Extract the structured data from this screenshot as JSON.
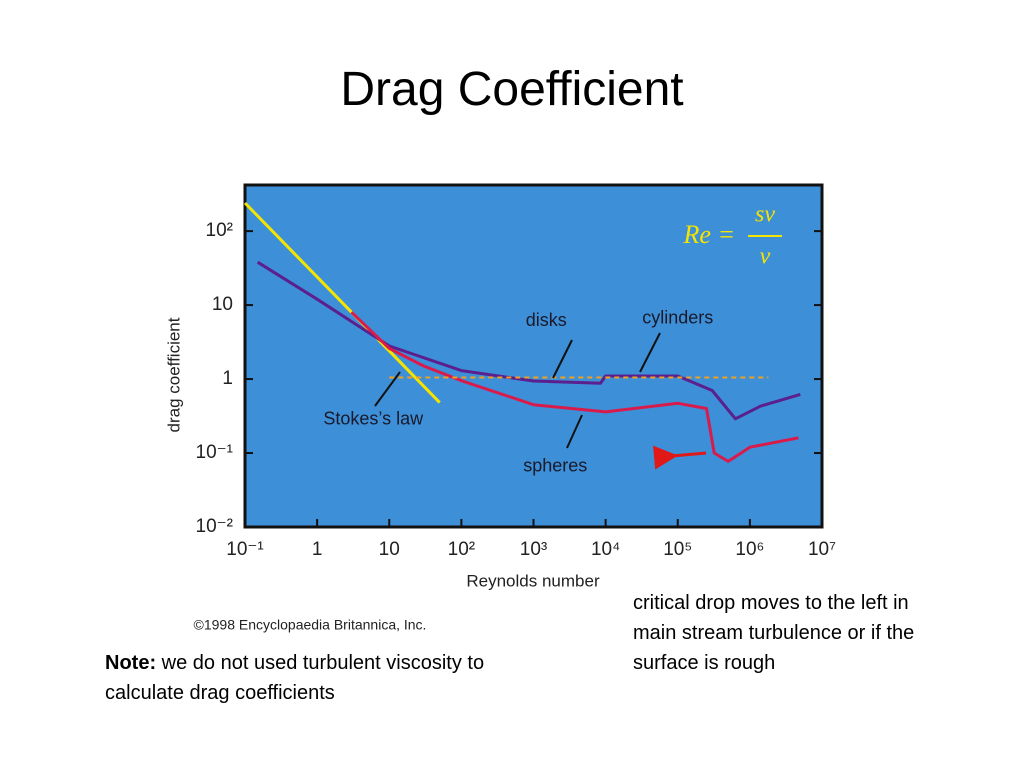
{
  "title": "Drag Coefficient",
  "note": {
    "label": "Note:",
    "text": " we do not used turbulent viscosity to calculate drag coefficients"
  },
  "side_text": "critical drop moves to the left in main stream turbulence or if the surface is rough",
  "chart_data": {
    "type": "line",
    "x_label": "Reynolds number",
    "y_label": "drag coefficient",
    "copyright": "©1998 Encyclopaedia Britannica, Inc.",
    "log_x": true,
    "log_y": true,
    "background": "#3d8fd8",
    "xlim": [
      0.1,
      10000000
    ],
    "ylim": [
      0.01,
      420
    ],
    "xticks": [
      {
        "value": 0.1,
        "label": "10⁻¹"
      },
      1,
      10,
      {
        "value": 100,
        "label": "10²"
      },
      {
        "value": 1000,
        "label": "10³"
      },
      {
        "value": 10000,
        "label": "10⁴"
      },
      {
        "value": 100000,
        "label": "10⁵"
      },
      {
        "value": 1000000,
        "label": "10⁶"
      },
      {
        "value": 10000000,
        "label": "10⁷"
      }
    ],
    "yticks": [
      {
        "value": 0.01,
        "label": "10⁻²"
      },
      {
        "value": 0.1,
        "label": "10⁻¹"
      },
      1,
      10,
      {
        "value": 100,
        "label": "10²"
      }
    ],
    "series": [
      {
        "color": "#f5e400",
        "width": 3,
        "x": [
          0.1,
          50
        ],
        "values": [
          240,
          0.48
        ]
      },
      {
        "color": "#5b1f8e",
        "width": 3,
        "x": [
          0.15,
          1,
          10,
          100,
          1000,
          8500,
          10000,
          100000,
          300000,
          630000,
          1400000,
          5000000
        ],
        "values": [
          38,
          12,
          2.8,
          1.3,
          0.94,
          0.88,
          1.1,
          1.1,
          0.7,
          0.29,
          0.43,
          0.62
        ]
      },
      {
        "color": "#d81b4b",
        "width": 3,
        "x": [
          3,
          10,
          30,
          100,
          1000,
          10000,
          100000,
          250000,
          320000,
          500000,
          1000000,
          4700000
        ],
        "values": [
          8,
          2.6,
          1.5,
          0.95,
          0.45,
          0.36,
          0.47,
          0.4,
          0.1,
          0.077,
          0.12,
          0.16
        ]
      },
      {
        "color": "#f0a020",
        "width": 2,
        "dashed": true,
        "x": [
          10,
          1800000
        ],
        "values": [
          1.05,
          1.05
        ]
      }
    ],
    "annotations": [
      {
        "text": "disks",
        "x": 1500,
        "y": 6
      },
      {
        "text": "cylinders",
        "x": 100000,
        "y": 6.5
      },
      {
        "text": "Stokes’s law",
        "x": 6,
        "y": 0.28
      },
      {
        "text": "spheres",
        "x": 2000,
        "y": 0.065
      }
    ],
    "formula": {
      "lhs": "Re =",
      "numerator": "sv",
      "denominator": "ν",
      "color": "#f5e400"
    }
  }
}
